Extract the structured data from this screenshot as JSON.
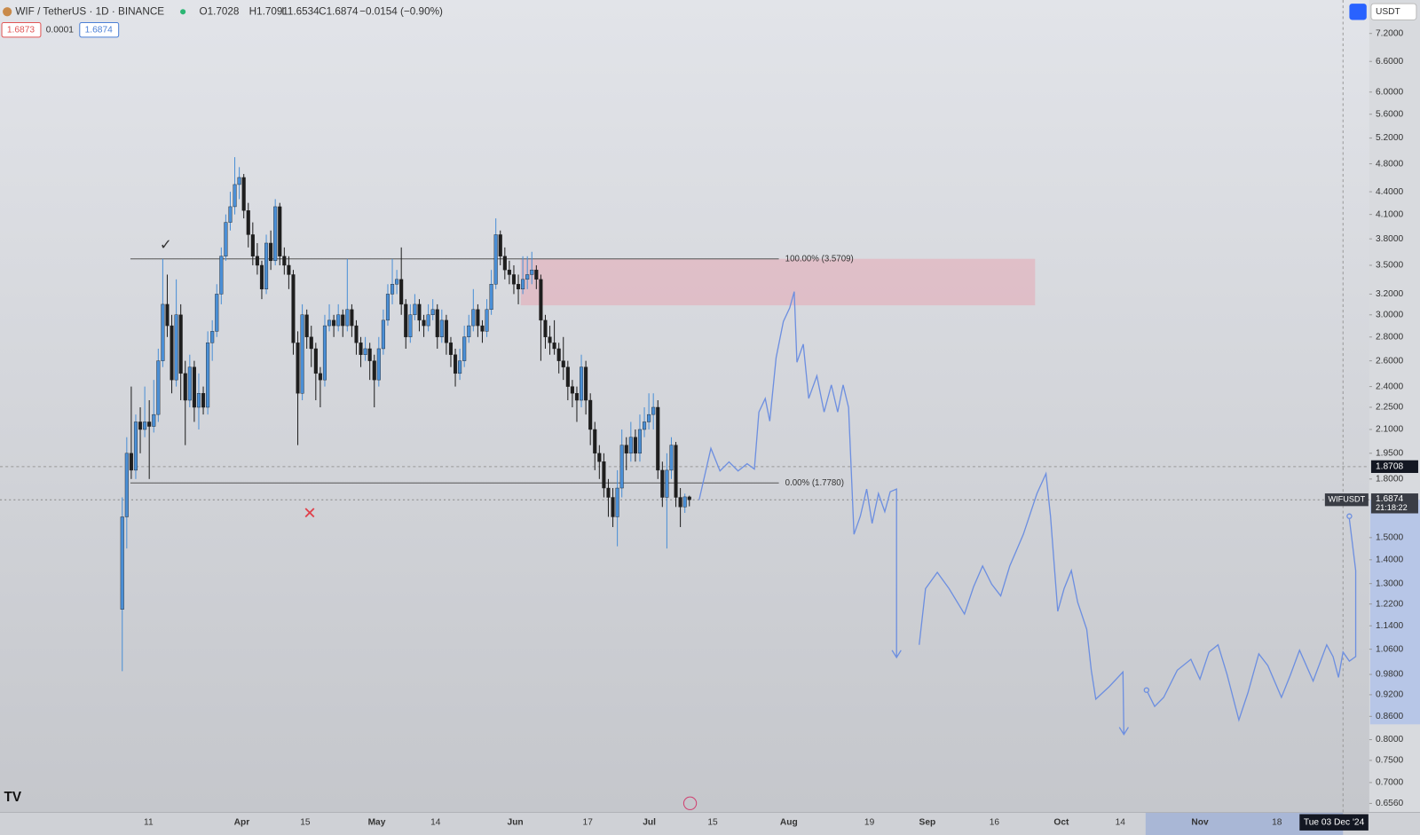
{
  "header": {
    "symbol": "WIF / TetherUS · 1D · BINANCE",
    "legend": [
      "O1.7028",
      "H1.7091",
      "L1.6534",
      "C1.6874",
      "−0.0154 (−0.90%)"
    ],
    "bid": "1.6873",
    "spread": "0.0001",
    "ask": "1.6874",
    "currency": "USDT"
  },
  "chart_data": {
    "type": "candlestick",
    "log_scale": true,
    "up_color": "#4a8fd6",
    "down_color": "#1e1e1e",
    "ylim": [
      0.638,
      7.99
    ],
    "yticks": [
      {
        "value": 7.2,
        "label": "7.2000"
      },
      {
        "value": 6.6,
        "label": "6.6000"
      },
      {
        "value": 6,
        "label": "6.0000"
      },
      {
        "value": 5.6,
        "label": "5.6000"
      },
      {
        "value": 5.2,
        "label": "5.2000"
      },
      {
        "value": 4.8,
        "label": "4.8000"
      },
      {
        "value": 4.4,
        "label": "4.4000"
      },
      {
        "value": 4.1,
        "label": "4.1000"
      },
      {
        "value": 3.8,
        "label": "3.8000"
      },
      {
        "value": 3.5,
        "label": "3.5000"
      },
      {
        "value": 3.2,
        "label": "3.2000"
      },
      {
        "value": 3,
        "label": "3.0000"
      },
      {
        "value": 2.8,
        "label": "2.8000"
      },
      {
        "value": 2.6,
        "label": "2.6000"
      },
      {
        "value": 2.4,
        "label": "2.4000"
      },
      {
        "value": 2.25,
        "label": "2.2500"
      },
      {
        "value": 2.1,
        "label": "2.1000"
      },
      {
        "value": 1.95,
        "label": "1.9500"
      },
      {
        "value": 1.8,
        "label": "1.8000"
      },
      {
        "value": 1.5,
        "label": "1.5000"
      },
      {
        "value": 1.4,
        "label": "1.4000"
      },
      {
        "value": 1.3,
        "label": "1.3000"
      },
      {
        "value": 1.22,
        "label": "1.2200"
      },
      {
        "value": 1.14,
        "label": "1.1400"
      },
      {
        "value": 1.06,
        "label": "1.0600"
      },
      {
        "value": 0.98,
        "label": "0.9800"
      },
      {
        "value": 0.92,
        "label": "0.9200"
      },
      {
        "value": 0.86,
        "label": "0.8600"
      },
      {
        "value": 0.8,
        "label": "0.8000"
      },
      {
        "value": 0.75,
        "label": "0.7500"
      },
      {
        "value": 0.7,
        "label": "0.7000"
      },
      {
        "value": 0.656,
        "label": "0.6560"
      }
    ],
    "xtick_labels": [
      "11",
      "Apr",
      "15",
      "May",
      "14",
      "Jun",
      "17",
      "Jul",
      "15",
      "Aug",
      "19",
      "Sep",
      "16",
      "Oct",
      "14",
      "Nov",
      "18"
    ],
    "cursor_date": "Tue 03 Dec '24",
    "fib_levels": [
      {
        "value": 3.5709,
        "label": "100.00% (3.5709)"
      },
      {
        "value": 1.778,
        "label": "0.00% (1.7780)"
      }
    ],
    "zone": [
      3.09,
      3.5709
    ],
    "crosshair_price": {
      "value": 1.8708,
      "label": "1.8708"
    },
    "last_price": {
      "value": 1.6874,
      "label": "1.6874",
      "symbol": "WIFUSDT",
      "countdown": "21:18:22"
    },
    "ohlc": [
      [
        1.2,
        1.7,
        0.99,
        1.6
      ],
      [
        1.6,
        2.05,
        1.45,
        1.95
      ],
      [
        1.95,
        2.4,
        1.8,
        1.85
      ],
      [
        1.85,
        2.2,
        1.8,
        2.15
      ],
      [
        2.15,
        2.25,
        1.95,
        2.1
      ],
      [
        2.1,
        2.4,
        2.05,
        2.15
      ],
      [
        2.15,
        2.3,
        1.8,
        2.12
      ],
      [
        2.12,
        2.45,
        2.08,
        2.2
      ],
      [
        2.2,
        2.7,
        2.15,
        2.6
      ],
      [
        2.6,
        3.57,
        2.55,
        3.1
      ],
      [
        3.1,
        3.4,
        2.8,
        2.9
      ],
      [
        2.9,
        3.0,
        2.35,
        2.45
      ],
      [
        2.45,
        3.35,
        2.4,
        3.0
      ],
      [
        3.0,
        3.1,
        2.3,
        2.5
      ],
      [
        2.5,
        2.6,
        2.0,
        2.3
      ],
      [
        2.3,
        2.65,
        2.25,
        2.55
      ],
      [
        2.55,
        2.6,
        2.15,
        2.25
      ],
      [
        2.25,
        2.5,
        2.1,
        2.35
      ],
      [
        2.35,
        2.4,
        2.2,
        2.25
      ],
      [
        2.25,
        2.85,
        2.2,
        2.75
      ],
      [
        2.75,
        2.95,
        2.6,
        2.85
      ],
      [
        2.85,
        3.3,
        2.8,
        3.2
      ],
      [
        3.2,
        3.7,
        3.1,
        3.6
      ],
      [
        3.6,
        4.1,
        3.55,
        4.0
      ],
      [
        4.0,
        4.4,
        3.9,
        4.2
      ],
      [
        4.2,
        4.9,
        4.1,
        4.5
      ],
      [
        4.5,
        4.75,
        4.3,
        4.6
      ],
      [
        4.6,
        4.65,
        4.05,
        4.15
      ],
      [
        4.15,
        4.25,
        3.7,
        3.85
      ],
      [
        3.85,
        4.0,
        3.5,
        3.6
      ],
      [
        3.6,
        3.75,
        3.4,
        3.5
      ],
      [
        3.5,
        3.55,
        3.15,
        3.25
      ],
      [
        3.25,
        3.85,
        3.2,
        3.75
      ],
      [
        3.75,
        3.9,
        3.45,
        3.55
      ],
      [
        3.55,
        4.3,
        3.5,
        4.2
      ],
      [
        4.2,
        4.25,
        3.5,
        3.6
      ],
      [
        3.6,
        3.7,
        3.4,
        3.5
      ],
      [
        3.5,
        3.6,
        3.25,
        3.4
      ],
      [
        3.4,
        3.45,
        2.65,
        2.75
      ],
      [
        2.75,
        2.85,
        2.0,
        2.35
      ],
      [
        2.35,
        3.1,
        2.3,
        3.0
      ],
      [
        3.0,
        3.05,
        2.7,
        2.8
      ],
      [
        2.8,
        2.9,
        2.55,
        2.7
      ],
      [
        2.7,
        2.75,
        2.3,
        2.5
      ],
      [
        2.5,
        2.55,
        2.25,
        2.45
      ],
      [
        2.45,
        3.0,
        2.4,
        2.9
      ],
      [
        2.9,
        3.1,
        2.85,
        2.95
      ],
      [
        2.95,
        3.0,
        2.8,
        2.9
      ],
      [
        2.9,
        3.1,
        2.85,
        3.0
      ],
      [
        3.0,
        3.05,
        2.8,
        2.9
      ],
      [
        2.9,
        3.57,
        2.85,
        3.05
      ],
      [
        3.05,
        3.1,
        2.8,
        2.9
      ],
      [
        2.9,
        2.95,
        2.65,
        2.75
      ],
      [
        2.75,
        2.8,
        2.55,
        2.65
      ],
      [
        2.65,
        2.8,
        2.6,
        2.7
      ],
      [
        2.7,
        2.75,
        2.45,
        2.6
      ],
      [
        2.6,
        2.65,
        2.25,
        2.45
      ],
      [
        2.45,
        2.8,
        2.4,
        2.7
      ],
      [
        2.7,
        3.05,
        2.65,
        2.95
      ],
      [
        2.95,
        3.3,
        2.9,
        3.2
      ],
      [
        3.2,
        3.57,
        3.1,
        3.3
      ],
      [
        3.3,
        3.45,
        3.2,
        3.35
      ],
      [
        3.35,
        3.7,
        3.0,
        3.1
      ],
      [
        3.1,
        3.15,
        2.7,
        2.8
      ],
      [
        2.8,
        3.1,
        2.75,
        3.0
      ],
      [
        3.0,
        3.2,
        2.95,
        3.1
      ],
      [
        3.1,
        3.15,
        2.85,
        2.95
      ],
      [
        2.95,
        3.0,
        2.8,
        2.9
      ],
      [
        2.9,
        3.1,
        2.85,
        3.0
      ],
      [
        3.0,
        3.15,
        2.95,
        3.05
      ],
      [
        3.05,
        3.1,
        2.7,
        2.8
      ],
      [
        2.8,
        3.05,
        2.75,
        2.95
      ],
      [
        2.95,
        3.0,
        2.65,
        2.75
      ],
      [
        2.75,
        2.8,
        2.55,
        2.65
      ],
      [
        2.65,
        2.7,
        2.4,
        2.5
      ],
      [
        2.5,
        2.7,
        2.45,
        2.6
      ],
      [
        2.6,
        2.9,
        2.55,
        2.8
      ],
      [
        2.8,
        3.0,
        2.75,
        2.9
      ],
      [
        2.9,
        3.25,
        2.85,
        3.05
      ],
      [
        3.05,
        3.1,
        2.8,
        2.9
      ],
      [
        2.9,
        2.95,
        2.75,
        2.85
      ],
      [
        2.85,
        3.15,
        2.8,
        3.05
      ],
      [
        3.05,
        3.45,
        3.0,
        3.3
      ],
      [
        3.3,
        4.05,
        3.25,
        3.85
      ],
      [
        3.85,
        3.9,
        3.5,
        3.6
      ],
      [
        3.6,
        3.7,
        3.35,
        3.45
      ],
      [
        3.45,
        3.55,
        3.3,
        3.4
      ],
      [
        3.4,
        3.5,
        3.2,
        3.3
      ],
      [
        3.3,
        3.4,
        3.1,
        3.25
      ],
      [
        3.25,
        3.6,
        3.2,
        3.35
      ],
      [
        3.35,
        3.6,
        3.25,
        3.4
      ],
      [
        3.4,
        3.65,
        3.3,
        3.45
      ],
      [
        3.45,
        3.5,
        3.25,
        3.35
      ],
      [
        3.35,
        3.4,
        2.6,
        2.95
      ],
      [
        2.95,
        3.0,
        2.7,
        2.8
      ],
      [
        2.8,
        2.9,
        2.65,
        2.75
      ],
      [
        2.75,
        2.95,
        2.65,
        2.7
      ],
      [
        2.7,
        2.75,
        2.5,
        2.6
      ],
      [
        2.6,
        2.8,
        2.45,
        2.55
      ],
      [
        2.55,
        2.6,
        2.3,
        2.4
      ],
      [
        2.4,
        2.45,
        2.25,
        2.35
      ],
      [
        2.35,
        2.4,
        2.15,
        2.3
      ],
      [
        2.3,
        2.65,
        2.25,
        2.55
      ],
      [
        2.55,
        2.6,
        2.2,
        2.3
      ],
      [
        2.3,
        2.35,
        2.0,
        2.1
      ],
      [
        2.1,
        2.15,
        1.85,
        1.95
      ],
      [
        1.95,
        2.0,
        1.8,
        1.9
      ],
      [
        1.9,
        1.95,
        1.7,
        1.75
      ],
      [
        1.75,
        1.8,
        1.6,
        1.7
      ],
      [
        1.7,
        1.75,
        1.55,
        1.6
      ],
      [
        1.6,
        1.85,
        1.46,
        1.75
      ],
      [
        1.75,
        2.1,
        1.7,
        2.0
      ],
      [
        2.0,
        2.05,
        1.85,
        1.95
      ],
      [
        1.95,
        2.15,
        1.9,
        2.05
      ],
      [
        2.05,
        2.1,
        1.9,
        1.95
      ],
      [
        1.95,
        2.2,
        1.9,
        2.1
      ],
      [
        2.1,
        2.25,
        2.05,
        2.15
      ],
      [
        2.15,
        2.35,
        2.1,
        2.2
      ],
      [
        2.2,
        2.35,
        2.1,
        2.25
      ],
      [
        2.25,
        2.3,
        1.8,
        1.85
      ],
      [
        1.85,
        1.9,
        1.65,
        1.7
      ],
      [
        1.7,
        1.95,
        1.45,
        1.85
      ],
      [
        1.85,
        2.05,
        1.8,
        2.0
      ],
      [
        2.0,
        2.02,
        1.65,
        1.7
      ],
      [
        1.7,
        1.75,
        1.55,
        1.65
      ],
      [
        1.65,
        1.72,
        1.62,
        1.7028
      ],
      [
        1.7028,
        1.7091,
        1.6534,
        1.6874
      ]
    ]
  }
}
